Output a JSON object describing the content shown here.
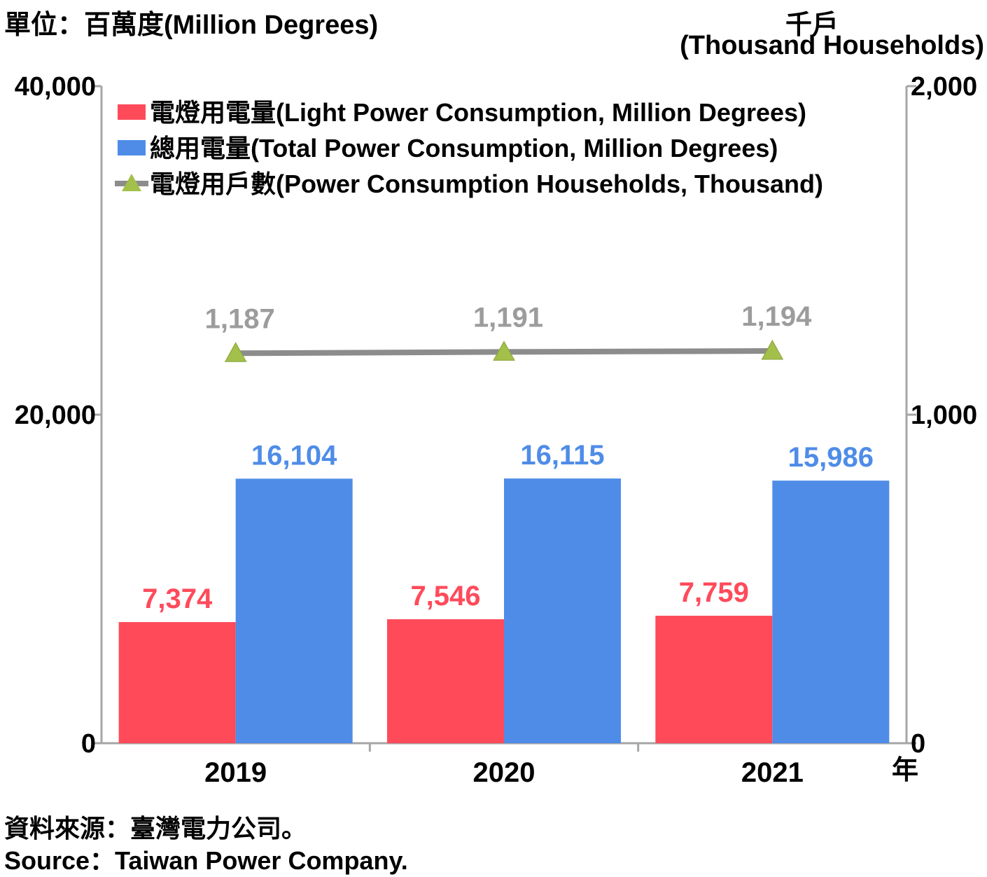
{
  "chart_data": {
    "type": "bar",
    "left_axis_unit": "單位：百萬度(Million Degrees)",
    "right_axis_unit_cn": "千戶",
    "right_axis_unit_en": "(Thousand Households)",
    "x_unit": "年",
    "categories": [
      "2019",
      "2020",
      "2021"
    ],
    "left_ylim": [
      0,
      40000
    ],
    "right_ylim": [
      0,
      2000
    ],
    "left_ticks": [
      "0",
      "20,000",
      "40,000"
    ],
    "left_tick_values": [
      0,
      20000,
      40000
    ],
    "right_ticks": [
      "0",
      "1,000",
      "2,000"
    ],
    "right_tick_values": [
      0,
      1000,
      2000
    ],
    "grid": false,
    "legend_position": "top-left inside plot",
    "series": [
      {
        "name": "電燈用電量(Light Power Consumption, Million Degrees)",
        "kind": "bar",
        "axis": "left",
        "color": "#ff4a5a",
        "values": [
          7374,
          7546,
          7759
        ],
        "labels": [
          "7,374",
          "7,546",
          "7,759"
        ]
      },
      {
        "name": "總用電量(Total Power Consumption, Million Degrees)",
        "kind": "bar",
        "axis": "left",
        "color": "#4f8ce8",
        "values": [
          16104,
          16115,
          15986
        ],
        "labels": [
          "16,104",
          "16,115",
          "15,986"
        ]
      },
      {
        "name": "電燈用戶數(Power Consumption Households, Thousand)",
        "kind": "line",
        "axis": "right",
        "color": "#8c8c8c",
        "marker_color": "#a2c04a",
        "values": [
          1187,
          1191,
          1194
        ],
        "labels": [
          "1,187",
          "1,191",
          "1,194"
        ]
      }
    ]
  },
  "source": {
    "cn": "資料來源：臺灣電力公司。",
    "en": "Source：Taiwan Power Company."
  }
}
